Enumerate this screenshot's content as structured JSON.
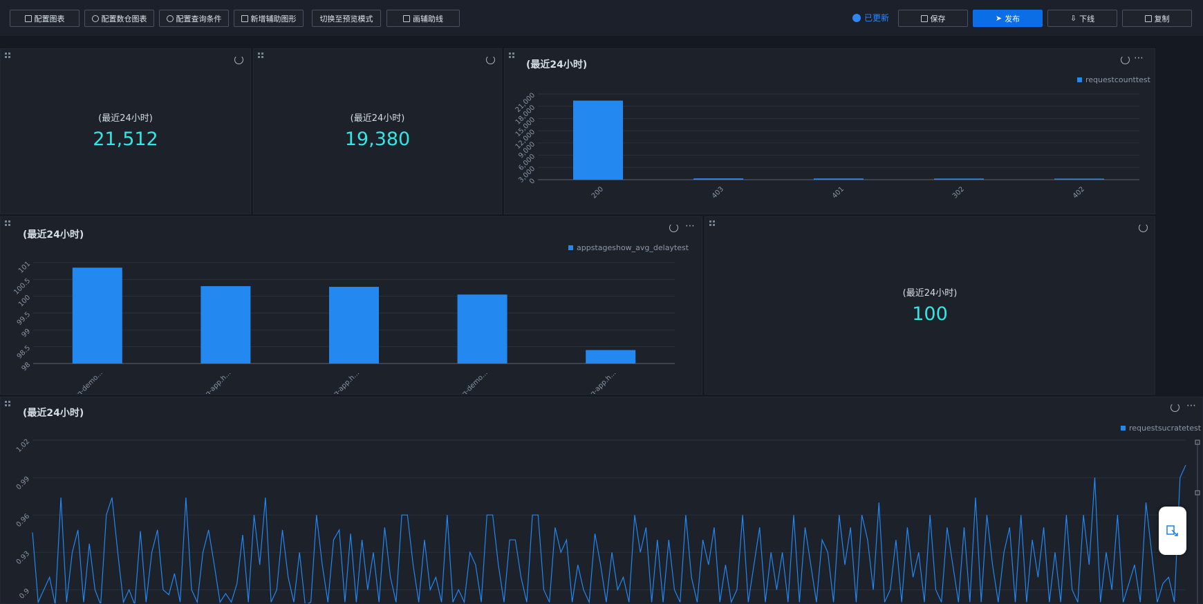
{
  "toolbar": {
    "left_buttons": [
      "配置图表",
      "配置数仓图表",
      "配置查询条件",
      "新增辅助图形",
      "切换至预览模式",
      "画辅助线"
    ],
    "status": "已更新",
    "save": "保存",
    "publish": "发布",
    "offline": "下线",
    "copy": "复制"
  },
  "kpis": [
    {
      "label": "(最近24小时)",
      "value": "21,512"
    },
    {
      "label": "(最近24小时)",
      "value": "19,380"
    },
    {
      "label": "(最近24小时)",
      "value": "100"
    }
  ],
  "colors": {
    "accent": "#0a6fe6",
    "bar": "#2388f0",
    "kpi": "#33e6e2",
    "panel": "#1c212a"
  },
  "chart_data": [
    {
      "type": "bar",
      "title": "(最近24小时)",
      "legend": "requestcounttest",
      "categories": [
        "200",
        "403",
        "401",
        "302",
        "402"
      ],
      "values": [
        19380,
        320,
        300,
        280,
        260
      ],
      "yticks": [
        "0",
        "3,000",
        "6,000",
        "9,000",
        "12,000",
        "15,000",
        "18,000",
        "21,000"
      ],
      "ylim": [
        0,
        21000
      ]
    },
    {
      "type": "bar",
      "title": "(最近24小时)",
      "legend": "appstageshow_avg_delaytest",
      "categories": [
        "org-demo...",
        "org-app.h...",
        "org-app.h...",
        "org-demo...",
        "org-app.h..."
      ],
      "values": [
        100.85,
        100.3,
        100.28,
        100.05,
        98.4
      ],
      "yticks": [
        "98",
        "98.5",
        "99",
        "99.5",
        "100",
        "100.5",
        "101"
      ],
      "ylim": [
        98,
        101
      ]
    },
    {
      "type": "line",
      "title": "(最近24小时)",
      "legend": "requestsucratetest",
      "yticks": [
        "0.9",
        "0.93",
        "0.96",
        "0.99",
        "1.02"
      ],
      "ylim": [
        0.888,
        1.02
      ],
      "values": [
        0.946,
        0.89,
        0.9,
        0.91,
        0.888,
        0.974,
        0.89,
        0.93,
        0.948,
        0.89,
        0.937,
        0.9,
        0.888,
        0.96,
        0.974,
        0.93,
        0.89,
        0.9,
        0.888,
        0.947,
        0.89,
        0.93,
        0.948,
        0.9,
        0.896,
        0.913,
        0.89,
        0.974,
        0.9,
        0.89,
        0.93,
        0.948,
        0.92,
        0.89,
        0.897,
        0.89,
        0.905,
        0.944,
        0.89,
        0.96,
        0.92,
        0.974,
        0.89,
        0.9,
        0.948,
        0.91,
        0.89,
        0.93,
        0.888,
        0.89,
        0.96,
        0.92,
        0.89,
        0.94,
        0.948,
        0.89,
        0.945,
        0.89,
        0.94,
        0.9,
        0.93,
        0.89,
        0.95,
        0.91,
        0.89,
        0.96,
        0.96,
        0.92,
        0.89,
        0.94,
        0.9,
        0.91,
        0.89,
        0.96,
        0.89,
        0.9,
        0.89,
        0.93,
        0.92,
        0.89,
        0.96,
        0.96,
        0.92,
        0.89,
        0.94,
        0.94,
        0.91,
        0.89,
        0.96,
        0.96,
        0.9,
        0.89,
        0.95,
        0.93,
        0.94,
        0.89,
        0.92,
        0.9,
        0.89,
        0.945,
        0.92,
        0.89,
        0.93,
        0.9,
        0.91,
        0.89,
        0.96,
        0.93,
        0.95,
        0.89,
        0.94,
        0.89,
        0.94,
        0.9,
        0.89,
        0.96,
        0.91,
        0.89,
        0.94,
        0.92,
        0.95,
        0.89,
        0.92,
        0.89,
        0.9,
        0.96,
        0.89,
        0.92,
        0.95,
        0.89,
        0.93,
        0.9,
        0.93,
        0.89,
        0.96,
        0.89,
        0.95,
        0.92,
        0.89,
        0.94,
        0.93,
        0.89,
        0.96,
        0.92,
        0.95,
        0.89,
        0.96,
        0.94,
        0.9,
        0.97,
        0.89,
        0.9,
        0.94,
        0.89,
        0.95,
        0.91,
        0.93,
        0.89,
        0.96,
        0.9,
        0.89,
        0.95,
        0.92,
        0.89,
        0.95,
        0.89,
        0.974,
        0.89,
        0.96,
        0.92,
        0.89,
        0.93,
        0.95,
        0.89,
        0.96,
        0.89,
        0.94,
        0.91,
        0.95,
        0.89,
        0.93,
        0.89,
        0.96,
        0.9,
        0.89,
        0.96,
        0.92,
        0.99,
        0.89,
        0.93,
        0.9,
        0.96,
        0.89,
        0.905,
        0.92,
        0.89,
        0.97,
        0.93,
        0.89,
        0.905,
        0.91,
        0.89,
        0.99,
        1.0
      ]
    }
  ]
}
